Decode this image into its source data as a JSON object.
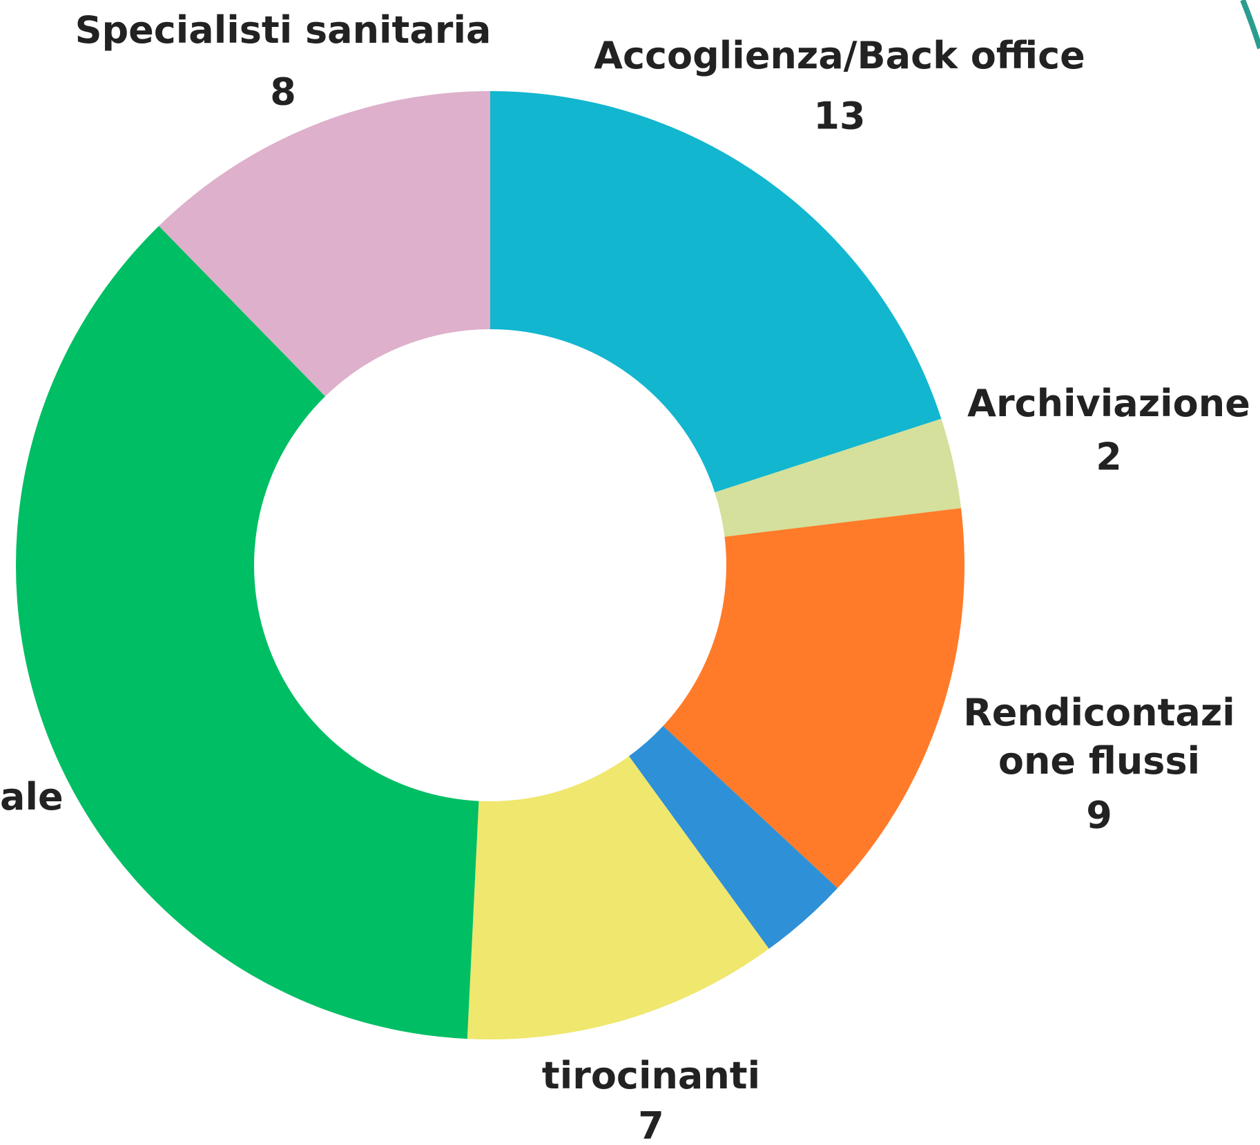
{
  "chart_data": {
    "type": "donut",
    "categories": [
      "Accoglienza/Back office",
      "Archiviazione",
      "Rendicontazi\none flussi",
      null,
      "tirocinanti",
      "ale",
      "Specialisti sanitaria"
    ],
    "values": [
      13,
      2,
      9,
      2,
      7,
      24,
      8
    ],
    "colors": [
      "#12b6cf",
      "#d4e09b",
      "#ff7b2a",
      "#2e90d6",
      "#efe76e",
      "#00be64",
      "#deb0cb"
    ]
  }
}
